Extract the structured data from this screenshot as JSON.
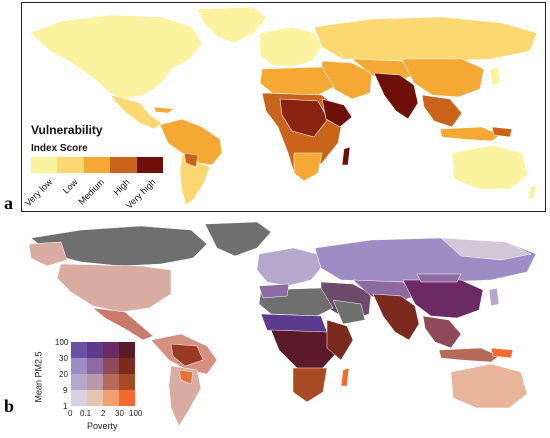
{
  "panels": {
    "a": {
      "letter": "a",
      "legend": {
        "title": "Vulnerability",
        "subtitle": "Index Score",
        "classes": [
          {
            "label": "Very low",
            "color": "#fbf3a0"
          },
          {
            "label": "Low",
            "color": "#fcd873"
          },
          {
            "label": "Medium",
            "color": "#f5a833"
          },
          {
            "label": "High",
            "color": "#c9641a"
          },
          {
            "label": "Very high",
            "color": "#6e1008"
          }
        ]
      }
    },
    "b": {
      "letter": "b",
      "legend": {
        "y_title": "Mean PM2.5",
        "x_title": "Poverty",
        "y_ticks": [
          "1",
          "9",
          "20",
          "30",
          "100"
        ],
        "x_ticks": [
          "0",
          "0.1",
          "2",
          "30",
          "100"
        ],
        "grid_colors": [
          [
            "#6a51a3",
            "#5c3b8f",
            "#6b2a63",
            "#5a1a2a"
          ],
          [
            "#9e8cc4",
            "#8d6aa1",
            "#8e4a58",
            "#7c2a1e"
          ],
          [
            "#b6a8cc",
            "#b89aa8",
            "#b66a5a",
            "#a84a24"
          ],
          [
            "#d9d0e2",
            "#e8c4b4",
            "#f0a070",
            "#f36a2a"
          ]
        ],
        "no_data_color": "#6f6f6f"
      }
    }
  }
}
